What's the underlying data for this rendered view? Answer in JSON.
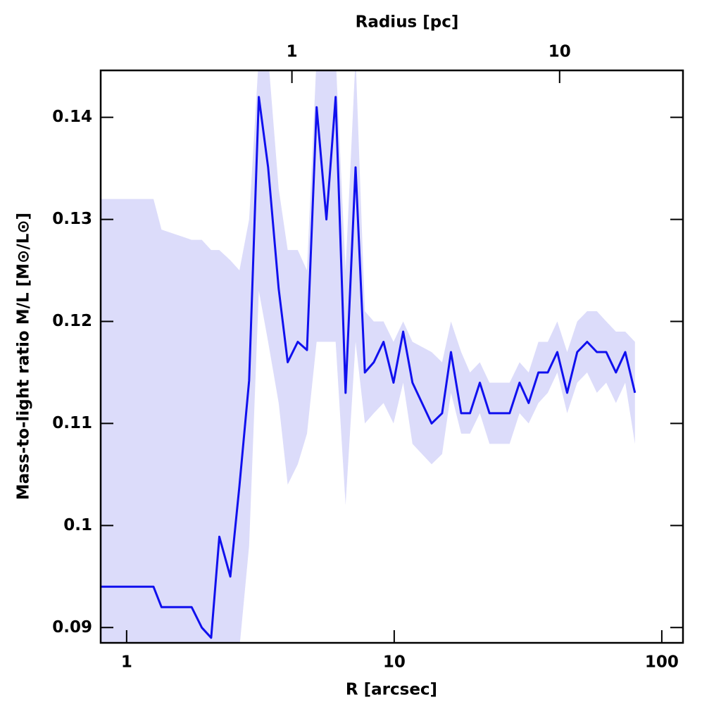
{
  "chart_data": {
    "type": "line",
    "xlabel": "R [arcsec]",
    "ylabel": "Mass-to-light ratio M/L [M⊙/L⊙]",
    "x2label": "Radius [pc]",
    "xscale": "log",
    "xlim": [
      0.8,
      120
    ],
    "xticks": [
      1,
      10,
      100
    ],
    "x2lim": [
      0.193,
      28.9
    ],
    "x2ticks": [
      1,
      10
    ],
    "ylim": [
      0.0885,
      0.1446
    ],
    "yticks": [
      0.09,
      0.1,
      0.11,
      0.12,
      0.13,
      0.14
    ],
    "color": "#1010ee",
    "band_color": "#dcdcfa",
    "x": [
      0.8,
      1.26,
      1.35,
      1.75,
      1.91,
      2.07,
      2.22,
      2.44,
      2.64,
      2.87,
      3.12,
      3.38,
      3.7,
      4.0,
      4.36,
      4.72,
      5.13,
      5.58,
      6.04,
      6.58,
      7.17,
      7.77,
      8.39,
      9.12,
      9.94,
      10.8,
      11.7,
      13.8,
      15.1,
      16.3,
      17.8,
      19.2,
      20.9,
      22.7,
      27.0,
      29.4,
      31.8,
      34.6,
      37.5,
      40.7,
      44.3,
      48.3,
      52.6,
      57.2,
      62.0,
      67.4,
      73.0,
      79.4
    ],
    "values": [
      0.094,
      0.094,
      0.092,
      0.092,
      0.09,
      0.089,
      0.0989,
      0.095,
      0.1039,
      0.1142,
      0.142,
      0.1351,
      0.1232,
      0.116,
      0.118,
      0.1172,
      0.141,
      0.13,
      0.142,
      0.113,
      0.1351,
      0.115,
      0.116,
      0.118,
      0.114,
      0.119,
      0.114,
      0.11,
      0.111,
      0.117,
      0.111,
      0.111,
      0.114,
      0.111,
      0.111,
      0.114,
      0.112,
      0.115,
      0.115,
      0.117,
      0.113,
      0.117,
      0.118,
      0.117,
      0.117,
      0.115,
      0.117,
      0.113
    ],
    "upper": [
      0.132,
      0.132,
      0.129,
      0.128,
      0.128,
      0.127,
      0.127,
      0.126,
      0.125,
      0.13,
      0.146,
      0.146,
      0.133,
      0.127,
      0.127,
      0.125,
      0.146,
      0.146,
      0.146,
      0.125,
      0.146,
      0.121,
      0.12,
      0.12,
      0.118,
      0.12,
      0.118,
      0.117,
      0.116,
      0.12,
      0.117,
      0.115,
      0.116,
      0.114,
      0.114,
      0.116,
      0.115,
      0.118,
      0.118,
      0.12,
      0.117,
      0.12,
      0.121,
      0.121,
      0.12,
      0.119,
      0.119,
      0.118
    ],
    "lower": [
      0.088,
      0.088,
      0.088,
      0.088,
      0.088,
      0.088,
      0.088,
      0.088,
      0.088,
      0.098,
      0.123,
      0.118,
      0.112,
      0.104,
      0.106,
      0.109,
      0.118,
      0.118,
      0.118,
      0.102,
      0.118,
      0.11,
      0.111,
      0.112,
      0.11,
      0.114,
      0.108,
      0.106,
      0.107,
      0.113,
      0.109,
      0.109,
      0.111,
      0.108,
      0.108,
      0.111,
      0.11,
      0.112,
      0.113,
      0.115,
      0.111,
      0.114,
      0.115,
      0.113,
      0.114,
      0.112,
      0.114,
      0.108
    ]
  }
}
